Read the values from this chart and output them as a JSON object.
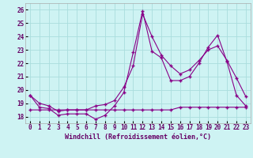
{
  "xlabel": "Windchill (Refroidissement éolien,°C)",
  "background_color": "#cef3f3",
  "grid_color": "#aadddd",
  "line_color": "#880088",
  "xlim": [
    -0.5,
    23.5
  ],
  "ylim": [
    17.5,
    26.5
  ],
  "yticks": [
    18,
    19,
    20,
    21,
    22,
    23,
    24,
    25,
    26
  ],
  "xticks": [
    0,
    1,
    2,
    3,
    4,
    5,
    6,
    7,
    8,
    9,
    10,
    11,
    12,
    13,
    14,
    15,
    16,
    17,
    18,
    19,
    20,
    21,
    22,
    23
  ],
  "series": [
    {
      "x": [
        0,
        1,
        2,
        3,
        4,
        5,
        6,
        7,
        8,
        9,
        10,
        11,
        12,
        13,
        14,
        15,
        16,
        17,
        18,
        19,
        20,
        21,
        22,
        23
      ],
      "y": [
        19.6,
        18.7,
        18.6,
        18.1,
        18.2,
        18.2,
        18.2,
        17.8,
        18.1,
        18.8,
        19.8,
        22.8,
        25.9,
        22.9,
        22.4,
        20.7,
        20.7,
        21.0,
        22.0,
        23.2,
        24.1,
        22.1,
        19.6,
        18.8
      ]
    },
    {
      "x": [
        0,
        1,
        2,
        3,
        4,
        5,
        6,
        7,
        8,
        9,
        10,
        11,
        12,
        13,
        14,
        15,
        16,
        17,
        18,
        19,
        20,
        21,
        22,
        23
      ],
      "y": [
        19.6,
        19.0,
        18.8,
        18.4,
        18.5,
        18.5,
        18.5,
        18.8,
        18.9,
        19.2,
        20.2,
        21.8,
        25.7,
        24.0,
        22.6,
        21.8,
        21.2,
        21.5,
        22.2,
        23.0,
        23.3,
        22.2,
        20.9,
        19.5
      ]
    },
    {
      "x": [
        0,
        1,
        2,
        3,
        4,
        5,
        6,
        7,
        8,
        9,
        10,
        11,
        12,
        13,
        14,
        15,
        16,
        17,
        18,
        19,
        20,
        21,
        22,
        23
      ],
      "y": [
        18.5,
        18.5,
        18.5,
        18.5,
        18.5,
        18.5,
        18.5,
        18.5,
        18.5,
        18.5,
        18.5,
        18.5,
        18.5,
        18.5,
        18.5,
        18.5,
        18.7,
        18.7,
        18.7,
        18.7,
        18.7,
        18.7,
        18.7,
        18.7
      ]
    }
  ],
  "xlabel_fontsize": 6,
  "tick_fontsize": 5.5
}
